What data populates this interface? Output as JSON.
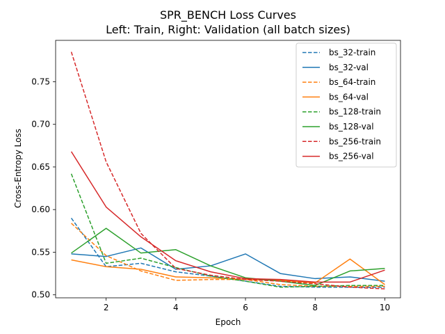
{
  "chart_data": {
    "type": "line",
    "title": "SPR_BENCH Loss Curves",
    "subtitle": "Left: Train, Right: Validation (all batch sizes)",
    "xlabel": "Epoch",
    "ylabel": "Cross-Entropy Loss",
    "xlim": [
      0.55,
      10.45
    ],
    "ylim": [
      0.4965,
      0.7985
    ],
    "x_ticks": [
      2,
      4,
      6,
      8,
      10
    ],
    "y_ticks": [
      0.5,
      0.55,
      0.6,
      0.65,
      0.7,
      0.75
    ],
    "y_tick_labels": [
      "0.50",
      "0.55",
      "0.60",
      "0.65",
      "0.70",
      "0.75"
    ],
    "grid": false,
    "legend_position": "top-right",
    "x": [
      1,
      2,
      3,
      4,
      5,
      6,
      7,
      8,
      9,
      10
    ],
    "series": [
      {
        "name": "bs_32-train",
        "color": "#1f77b4",
        "dash": "dashed",
        "values": [
          0.59,
          0.533,
          0.537,
          0.527,
          0.522,
          0.516,
          0.51,
          0.509,
          0.509,
          0.509
        ]
      },
      {
        "name": "bs_32-val",
        "color": "#1f77b4",
        "dash": "solid",
        "values": [
          0.548,
          0.545,
          0.555,
          0.53,
          0.534,
          0.548,
          0.525,
          0.519,
          0.521,
          0.516
        ]
      },
      {
        "name": "bs_64-train",
        "color": "#ff7f0e",
        "dash": "dashed",
        "values": [
          0.584,
          0.546,
          0.528,
          0.517,
          0.518,
          0.518,
          0.512,
          0.51,
          0.51,
          0.51
        ]
      },
      {
        "name": "bs_64-val",
        "color": "#ff7f0e",
        "dash": "solid",
        "values": [
          0.541,
          0.533,
          0.53,
          0.521,
          0.52,
          0.518,
          0.517,
          0.514,
          0.542,
          0.512
        ]
      },
      {
        "name": "bs_128-train",
        "color": "#2ca02c",
        "dash": "dashed",
        "values": [
          0.642,
          0.537,
          0.543,
          0.532,
          0.522,
          0.516,
          0.509,
          0.51,
          0.511,
          0.511
        ]
      },
      {
        "name": "bs_128-val",
        "color": "#2ca02c",
        "dash": "solid",
        "values": [
          0.549,
          0.578,
          0.549,
          0.553,
          0.534,
          0.52,
          0.516,
          0.511,
          0.528,
          0.531
        ]
      },
      {
        "name": "bs_256-train",
        "color": "#d62728",
        "dash": "dashed",
        "values": [
          0.785,
          0.656,
          0.572,
          0.531,
          0.523,
          0.518,
          0.516,
          0.513,
          0.509,
          0.507
        ]
      },
      {
        "name": "bs_256-val",
        "color": "#d62728",
        "dash": "solid",
        "values": [
          0.668,
          0.603,
          0.568,
          0.54,
          0.527,
          0.519,
          0.518,
          0.515,
          0.515,
          0.529
        ]
      }
    ]
  }
}
